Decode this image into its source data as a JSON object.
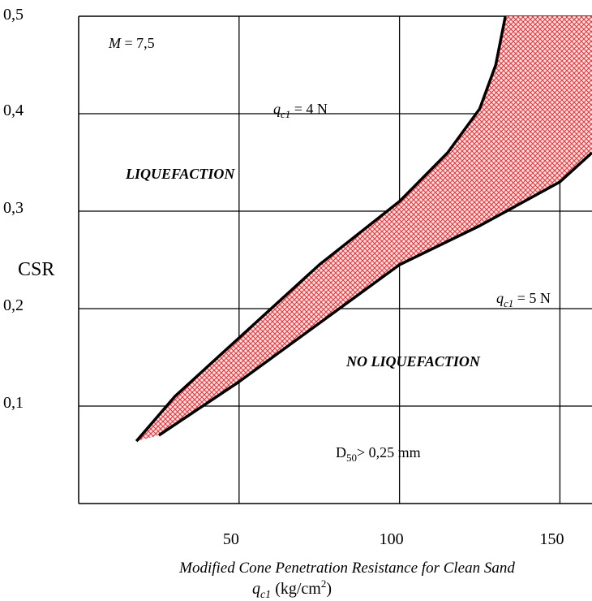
{
  "chart_data": {
    "type": "area",
    "xlabel_line1": "Modified Cone Penetration Resistance for Clean Sand",
    "xlabel_sym": "q",
    "xlabel_sub": "c1",
    "xlabel_unit_pre": "(kg/cm",
    "xlabel_unit_sup": "2",
    "xlabel_unit_post": ")",
    "ylabel": "CSR",
    "xlim": [
      0,
      160
    ],
    "ylim": [
      0,
      0.5
    ],
    "x_ticks": [
      {
        "value": 50,
        "label": "50"
      },
      {
        "value": 100,
        "label": "100"
      },
      {
        "value": 150,
        "label": "150"
      }
    ],
    "y_ticks": [
      {
        "value": 0.1,
        "label": "0,1"
      },
      {
        "value": 0.2,
        "label": "0,2"
      },
      {
        "value": 0.3,
        "label": "0,3"
      },
      {
        "value": 0.4,
        "label": "0,4"
      },
      {
        "value": 0.5,
        "label": "0,5"
      }
    ],
    "grid": true,
    "series": [
      {
        "name": "q_c1 = 4 N",
        "x": [
          18,
          30,
          50,
          75,
          100,
          115,
          125,
          130,
          133
        ],
        "y": [
          0.064,
          0.11,
          0.17,
          0.245,
          0.31,
          0.36,
          0.405,
          0.45,
          0.5
        ]
      },
      {
        "name": "q_c1 = 5 N",
        "x": [
          25,
          50,
          75,
          100,
          125,
          150,
          160
        ],
        "y": [
          0.07,
          0.125,
          0.185,
          0.245,
          0.285,
          0.33,
          0.36
        ]
      }
    ],
    "shaded_band": {
      "color": "#e8383d",
      "upper_x": [
        18,
        30,
        50,
        75,
        100,
        115,
        125,
        130,
        133,
        160
      ],
      "upper_y": [
        0.064,
        0.11,
        0.17,
        0.245,
        0.31,
        0.36,
        0.405,
        0.45,
        0.5,
        0.5
      ],
      "lower_x": [
        160,
        150,
        125,
        100,
        75,
        50,
        25,
        18
      ],
      "lower_y": [
        0.36,
        0.33,
        0.285,
        0.245,
        0.185,
        0.125,
        0.07,
        0.064
      ]
    },
    "annotations": {
      "magnitude": {
        "sym": "M",
        "rest": " = 7,5"
      },
      "curve_upper": {
        "sym": "q",
        "sub": "c1",
        "rest": " = 4 N"
      },
      "curve_lower": {
        "sym": "q",
        "sub": "c1",
        "rest": " = 5 N"
      },
      "region_upper": "LIQUEFACTION",
      "region_lower": "NO LIQUEFACTION",
      "grain_size_pre": "D",
      "grain_size_sub": "50",
      "grain_size_post": "> 0,25 mm"
    }
  }
}
